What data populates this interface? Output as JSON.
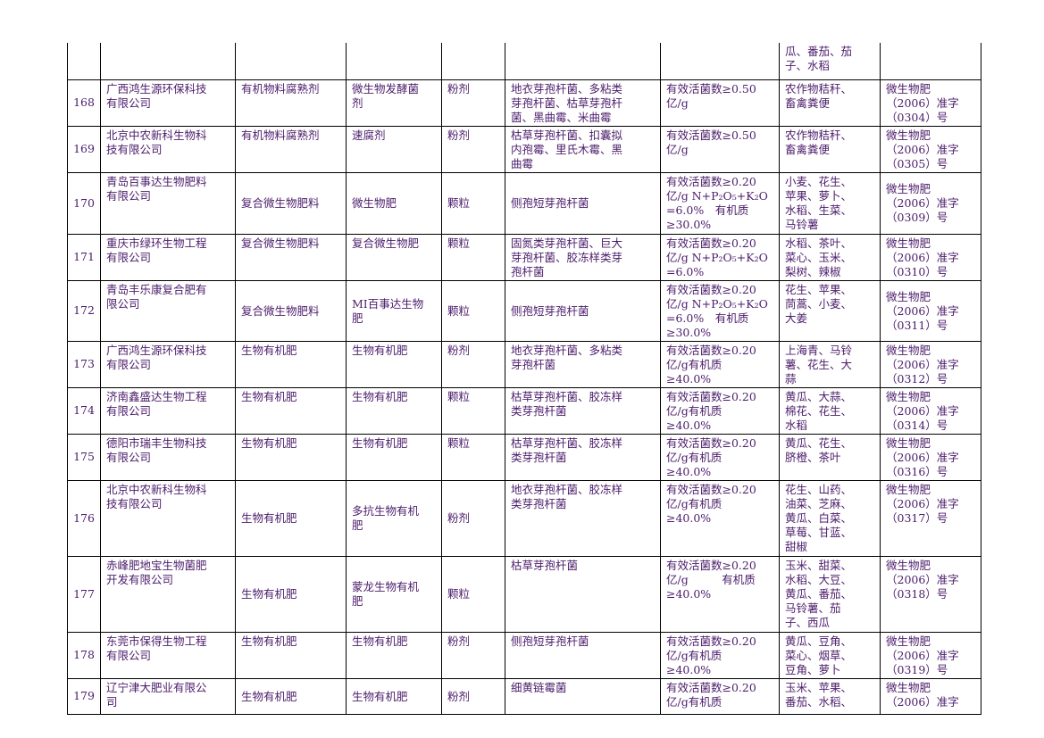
{
  "rows": [
    {
      "no": "",
      "company": "",
      "category": "",
      "name": "",
      "form": "",
      "strains": "",
      "content": "",
      "crops": "瓜、番茄、茄\n子、水稻",
      "license": ""
    },
    {
      "no": "168",
      "company": "广西鸿生源环保科技\n有限公司",
      "category": "有机物料腐熟剂",
      "name": "微生物发酵菌\n剂",
      "form": "粉剂",
      "strains": "地衣芽孢杆菌、多粘类\n芽孢杆菌、枯草芽孢杆\n菌、黑曲霉、米曲霉",
      "content": "有效活菌数≥0.50\n亿/g",
      "crops": "农作物秸秆、\n畜禽粪便",
      "license": "微生物肥\n（2006）准字\n（0304）号"
    },
    {
      "no": "169",
      "company": "北京中农新科生物科\n技有限公司",
      "category": "有机物料腐熟剂",
      "name": "速腐剂",
      "form": "粉剂",
      "strains": "枯草芽孢杆菌、扣囊拟\n内孢霉、里氏木霉、黑\n曲霉",
      "content": "有效活菌数≥0.50\n亿/g",
      "crops": "农作物秸秆、\n畜禽粪便",
      "license": "微生物肥\n（2006）准字\n（0305）号"
    },
    {
      "no": "170",
      "company": "青岛百事达生物肥料\n有限公司",
      "category": "复合微生物肥料",
      "name": "微生物肥",
      "form": "颗粒",
      "strains": "侧孢短芽孢杆菌",
      "content": "有效活菌数≥0.20\n亿/g N+P₂O₅+K₂O\n=6.0%　有机质\n≥30.0%",
      "crops": "小麦、花生、\n苹果、萝卜、\n水稻、生菜、\n马铃薯",
      "license": "微生物肥\n（2006）准字\n（0309）号"
    },
    {
      "no": "171",
      "company": "重庆市绿环生物工程\n有限公司",
      "category": "复合微生物肥料",
      "name": "复合微生物肥",
      "form": "颗粒",
      "strains": "固氮类芽孢杆菌、巨大\n芽孢杆菌、胶冻样类芽\n孢杆菌",
      "content": "有效活菌数≥0.20\n亿/g N+P₂O₅+K₂O\n=6.0%",
      "crops": "水稻、茶叶、\n菜心、玉米、\n梨树、辣椒",
      "license": "微生物肥\n（2006）准字\n（0310）号"
    },
    {
      "no": "172",
      "company": "青岛丰乐康复合肥有\n限公司",
      "category": "复合微生物肥料",
      "name": "MI百事达生物\n肥",
      "form": "颗粒",
      "strains": "侧孢短芽孢杆菌",
      "content": "有效活菌数≥0.20\n亿/g N+P₂O₅+K₂O\n=6.0%　有机质\n≥30.0%",
      "crops": "花生、苹果、\n茼蒿、小麦、\n大姜",
      "license": "微生物肥\n（2006）准字\n（0311）号"
    },
    {
      "no": "173",
      "company": "广西鸿生源环保科技\n有限公司",
      "category": "生物有机肥",
      "name": "生物有机肥",
      "form": "粉剂",
      "strains": "地衣芽孢杆菌、多粘类\n芽孢杆菌",
      "content": "有效活菌数≥0.20\n亿/g有机质\n≥40.0%",
      "crops": "上海青、马铃\n薯、花生、大\n蒜",
      "license": "微生物肥\n（2006）准字\n（0312）号"
    },
    {
      "no": "174",
      "company": "济南鑫盛达生物工程\n有限公司",
      "category": "生物有机肥",
      "name": "生物有机肥",
      "form": "颗粒",
      "strains": "枯草芽孢杆菌、胶冻样\n类芽孢杆菌",
      "content": "有效活菌数≥0.20\n亿/g有机质\n≥40.0%",
      "crops": "黄瓜、大蒜、\n棉花、花生、\n水稻",
      "license": "微生物肥\n（2006）准字\n（0314）号"
    },
    {
      "no": "175",
      "company": "德阳市瑞丰生物科技\n有限公司",
      "category": "生物有机肥",
      "name": "生物有机肥",
      "form": "颗粒",
      "strains": "枯草芽孢杆菌、胶冻样\n类芽孢杆菌",
      "content": "有效活菌数≥0.20\n亿/g有机质\n≥40.0%",
      "crops": "黄瓜、花生、\n脐橙、茶叶",
      "license": "微生物肥\n（2006）准字\n（0316）号"
    },
    {
      "no": "176",
      "company": "北京中农新科生物科\n技有限公司",
      "category": "生物有机肥",
      "name": "多抗生物有机\n肥",
      "form": "粉剂",
      "strains": "地衣芽孢杆菌、胶冻样\n类芽孢杆菌",
      "content": "有效活菌数≥0.20\n亿/g有机质\n≥40.0%",
      "crops": "花生、山药、\n油菜、芝麻、\n黄瓜、白菜、\n草莓、甘蓝、\n甜椒",
      "license": "微生物肥\n（2006）准字\n（0317）号"
    },
    {
      "no": "177",
      "company": "赤峰肥地宝生物菌肥\n开发有限公司",
      "category": "生物有机肥",
      "name": "蒙龙生物有机\n肥",
      "form": "颗粒",
      "strains": "枯草芽孢杆菌",
      "content": "有效活菌数≥0.20\n亿/g　　　有机质\n≥40.0%",
      "crops": "玉米、甜菜、\n水稻、大豆、\n黄瓜、番茄、\n马铃薯、茄\n子、西瓜",
      "license": "微生物肥\n（2006）准字\n（0318）号"
    },
    {
      "no": "178",
      "company": "东莞市保得生物工程\n有限公司",
      "category": "生物有机肥",
      "name": "生物有机肥",
      "form": "粉剂",
      "strains": "侧孢短芽孢杆菌",
      "content": "有效活菌数≥0.20\n亿/g有机质\n≥40.0%",
      "crops": "黄瓜、豆角、\n菜心、烟草、\n豆角、萝卜",
      "license": "微生物肥\n（2006）准字\n（0319）号"
    },
    {
      "no": "179",
      "company": "辽宁津大肥业有限公\n司",
      "category": "生物有机肥",
      "name": "生物有机肥",
      "form": "粉剂",
      "strains": "细黄链霉菌",
      "content": "有效活菌数≥0.20\n亿/g有机质",
      "crops": "玉米、苹果、\n番茄、水稻、",
      "license": "微生物肥\n（2006）准字"
    }
  ]
}
